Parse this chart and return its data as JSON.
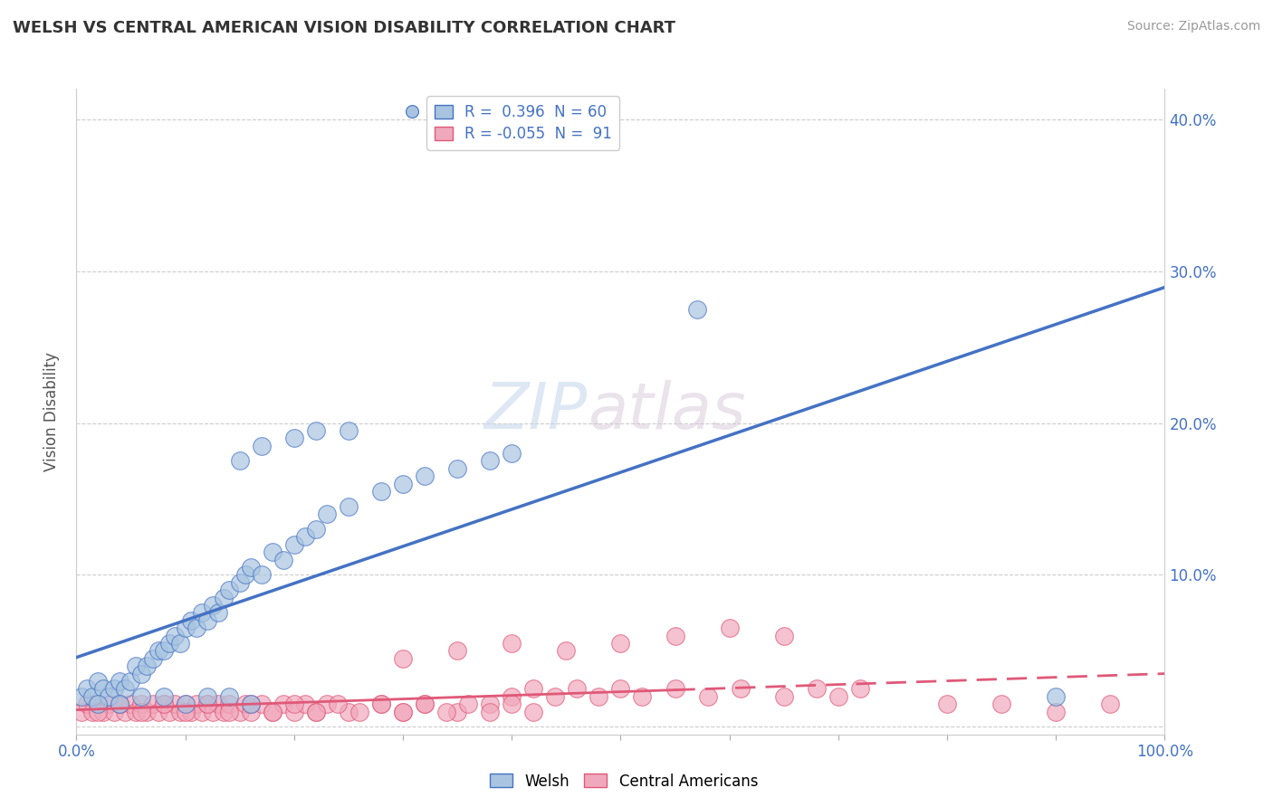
{
  "title": "WELSH VS CENTRAL AMERICAN VISION DISABILITY CORRELATION CHART",
  "source_text": "Source: ZipAtlas.com",
  "ylabel": "Vision Disability",
  "xlim": [
    0.0,
    1.0
  ],
  "ylim": [
    -0.005,
    0.42
  ],
  "xticks": [
    0.0,
    0.1,
    0.2,
    0.3,
    0.4,
    0.5,
    0.6,
    0.7,
    0.8,
    0.9,
    1.0
  ],
  "xticklabels": [
    "0.0%",
    "",
    "",
    "",
    "",
    "",
    "",
    "",
    "",
    "",
    "100.0%"
  ],
  "yticks": [
    0.0,
    0.1,
    0.2,
    0.3,
    0.4
  ],
  "yticklabels_right": [
    "",
    "10.0%",
    "20.0%",
    "30.0%",
    "40.0%"
  ],
  "welsh_color": "#a8c4e0",
  "central_american_color": "#f0a8bc",
  "welsh_line_color": "#4472c4",
  "central_american_line_color": "#e05878",
  "welsh_R": 0.396,
  "welsh_N": 60,
  "central_american_R": -0.055,
  "central_american_N": 91,
  "legend_label_welsh": "Welsh",
  "legend_label_ca": "Central Americans",
  "watermark_zip": "ZIP",
  "watermark_atlas": "atlas",
  "background_color": "#ffffff",
  "welsh_x": [
    0.005,
    0.01,
    0.015,
    0.02,
    0.025,
    0.03,
    0.035,
    0.04,
    0.045,
    0.05,
    0.055,
    0.06,
    0.065,
    0.07,
    0.075,
    0.08,
    0.085,
    0.09,
    0.095,
    0.1,
    0.105,
    0.11,
    0.115,
    0.12,
    0.125,
    0.13,
    0.135,
    0.14,
    0.15,
    0.155,
    0.16,
    0.17,
    0.18,
    0.19,
    0.2,
    0.21,
    0.22,
    0.23,
    0.25,
    0.28,
    0.3,
    0.32,
    0.35,
    0.38,
    0.4,
    0.15,
    0.17,
    0.2,
    0.22,
    0.25,
    0.57,
    0.9,
    0.02,
    0.04,
    0.06,
    0.08,
    0.1,
    0.12,
    0.14,
    0.16
  ],
  "welsh_y": [
    0.02,
    0.025,
    0.02,
    0.03,
    0.025,
    0.02,
    0.025,
    0.03,
    0.025,
    0.03,
    0.04,
    0.035,
    0.04,
    0.045,
    0.05,
    0.05,
    0.055,
    0.06,
    0.055,
    0.065,
    0.07,
    0.065,
    0.075,
    0.07,
    0.08,
    0.075,
    0.085,
    0.09,
    0.095,
    0.1,
    0.105,
    0.1,
    0.115,
    0.11,
    0.12,
    0.125,
    0.13,
    0.14,
    0.145,
    0.155,
    0.16,
    0.165,
    0.17,
    0.175,
    0.18,
    0.175,
    0.185,
    0.19,
    0.195,
    0.195,
    0.275,
    0.02,
    0.015,
    0.015,
    0.02,
    0.02,
    0.015,
    0.02,
    0.02,
    0.015
  ],
  "ca_x": [
    0.005,
    0.01,
    0.015,
    0.02,
    0.025,
    0.03,
    0.035,
    0.04,
    0.045,
    0.05,
    0.055,
    0.06,
    0.065,
    0.07,
    0.075,
    0.08,
    0.085,
    0.09,
    0.095,
    0.1,
    0.105,
    0.11,
    0.115,
    0.12,
    0.125,
    0.13,
    0.135,
    0.14,
    0.15,
    0.155,
    0.16,
    0.17,
    0.18,
    0.19,
    0.2,
    0.21,
    0.22,
    0.23,
    0.25,
    0.28,
    0.3,
    0.32,
    0.35,
    0.38,
    0.4,
    0.42,
    0.44,
    0.46,
    0.48,
    0.5,
    0.52,
    0.55,
    0.58,
    0.61,
    0.65,
    0.68,
    0.7,
    0.72,
    0.8,
    0.85,
    0.9,
    0.95,
    0.3,
    0.35,
    0.4,
    0.45,
    0.5,
    0.55,
    0.6,
    0.65,
    0.02,
    0.04,
    0.06,
    0.08,
    0.1,
    0.12,
    0.14,
    0.16,
    0.18,
    0.2,
    0.22,
    0.24,
    0.26,
    0.28,
    0.3,
    0.32,
    0.34,
    0.36,
    0.38,
    0.4,
    0.42
  ],
  "ca_y": [
    0.01,
    0.015,
    0.01,
    0.015,
    0.01,
    0.015,
    0.01,
    0.015,
    0.01,
    0.015,
    0.01,
    0.015,
    0.01,
    0.015,
    0.01,
    0.015,
    0.01,
    0.015,
    0.01,
    0.015,
    0.01,
    0.015,
    0.01,
    0.015,
    0.01,
    0.015,
    0.01,
    0.015,
    0.01,
    0.015,
    0.01,
    0.015,
    0.01,
    0.015,
    0.01,
    0.015,
    0.01,
    0.015,
    0.01,
    0.015,
    0.01,
    0.015,
    0.01,
    0.015,
    0.02,
    0.025,
    0.02,
    0.025,
    0.02,
    0.025,
    0.02,
    0.025,
    0.02,
    0.025,
    0.02,
    0.025,
    0.02,
    0.025,
    0.015,
    0.015,
    0.01,
    0.015,
    0.045,
    0.05,
    0.055,
    0.05,
    0.055,
    0.06,
    0.065,
    0.06,
    0.01,
    0.015,
    0.01,
    0.015,
    0.01,
    0.015,
    0.01,
    0.015,
    0.01,
    0.015,
    0.01,
    0.015,
    0.01,
    0.015,
    0.01,
    0.015,
    0.01,
    0.015,
    0.01,
    0.015,
    0.01
  ]
}
